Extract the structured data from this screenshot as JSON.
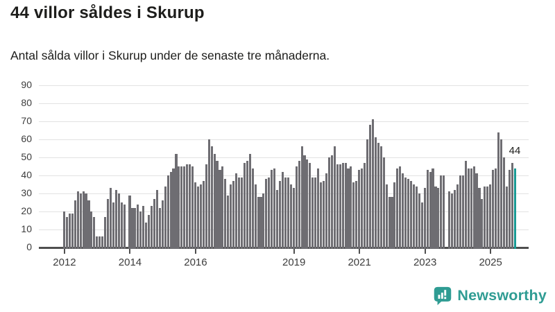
{
  "header": {
    "title": "44 villor såldes i Skurup",
    "subtitle": "Antal sålda villor i Skurup under de senaste tre månaderna."
  },
  "chart_data": {
    "type": "bar",
    "title": "44 villor såldes i Skurup",
    "subtitle": "Antal sålda villor i Skurup under de senaste tre månaderna.",
    "x_start_month": "2012-01",
    "x_end_month": "2025-10",
    "values": [
      20,
      17,
      19,
      19,
      26,
      31,
      30,
      31,
      30,
      26,
      20,
      17,
      6,
      6,
      6,
      17,
      27,
      33,
      25,
      32,
      30,
      25,
      24,
      null,
      29,
      22,
      22,
      24,
      20,
      23,
      14,
      18,
      23,
      27,
      32,
      22,
      26,
      34,
      40,
      42,
      44,
      52,
      45,
      45,
      45,
      46,
      46,
      45,
      36,
      34,
      35,
      37,
      46,
      60,
      56,
      52,
      48,
      43,
      45,
      38,
      29,
      35,
      37,
      41,
      39,
      39,
      47,
      48,
      52,
      44,
      35,
      28,
      28,
      30,
      38,
      39,
      43,
      44,
      32,
      37,
      42,
      39,
      39,
      35,
      33,
      45,
      48,
      56,
      51,
      49,
      47,
      39,
      39,
      44,
      36,
      37,
      41,
      50,
      51,
      56,
      46,
      46,
      47,
      47,
      44,
      45,
      36,
      37,
      43,
      44,
      47,
      60,
      68,
      71,
      61,
      58,
      56,
      50,
      35,
      28,
      28,
      36,
      44,
      45,
      41,
      39,
      38,
      37,
      35,
      34,
      30,
      25,
      33,
      43,
      42,
      44,
      34,
      33,
      40,
      40,
      null,
      31,
      30,
      32,
      35,
      40,
      40,
      48,
      44,
      44,
      45,
      41,
      33,
      27,
      34,
      34,
      35,
      43,
      44,
      64,
      60,
      50,
      34,
      43,
      47,
      44
    ],
    "highlight_index": 165,
    "highlight_value": 44,
    "ylim": [
      0,
      90
    ],
    "y_ticks": [
      0,
      10,
      20,
      30,
      40,
      50,
      60,
      70,
      80,
      90
    ],
    "x_tick_labels": [
      "2012",
      "2014",
      "2016",
      "2019",
      "2021",
      "2023",
      "2025"
    ],
    "x_tick_month_offsets": [
      0,
      24,
      48,
      84,
      108,
      132,
      156
    ],
    "grid": true,
    "legend": "none",
    "bar_color": "#6e6d72",
    "highlight_color": "#199a94"
  },
  "annotation": {
    "label": "44"
  },
  "branding": {
    "name": "Newsworthy",
    "color": "#2f9c93",
    "icon": "newsworthy-chart-bubble-icon"
  }
}
